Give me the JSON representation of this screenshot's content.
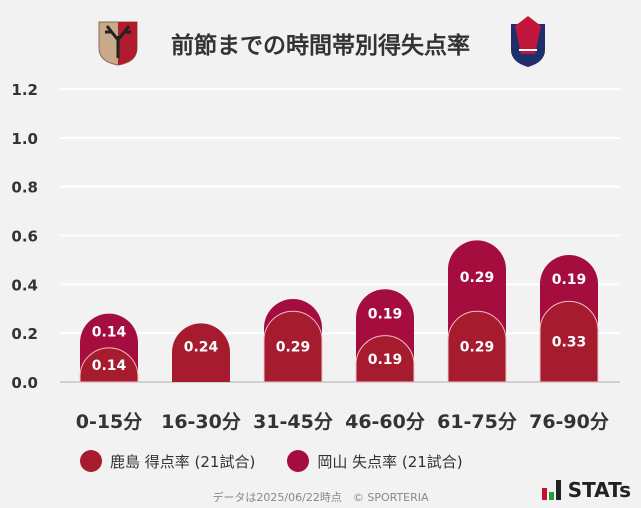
{
  "title": "前節までの時間帯別得失点率",
  "chart_data": {
    "type": "bar",
    "stacked": true,
    "categories": [
      "0-15分",
      "16-30分",
      "31-45分",
      "46-60分",
      "61-75分",
      "76-90分"
    ],
    "series": [
      {
        "name": "鹿島 得点率 (21試合)",
        "values": [
          0.14,
          0.24,
          0.29,
          0.19,
          0.29,
          0.33
        ],
        "color": "#a61c2e",
        "labels": [
          "0.14",
          "0.24",
          "0.29",
          "0.19",
          "0.29",
          "0.33"
        ]
      },
      {
        "name": "岡山 失点率 (21試合)",
        "values": [
          0.14,
          0,
          0.05,
          0.19,
          0.29,
          0.19
        ],
        "color": "#a60d3f",
        "labels": [
          "0.14",
          "",
          "",
          "0.19",
          "0.29",
          "0.19"
        ]
      }
    ],
    "ylim": [
      0,
      1.2
    ],
    "yticks": [
      "0.0",
      "0.2",
      "0.4",
      "0.6",
      "0.8",
      "1.0",
      "1.2"
    ],
    "grid": true,
    "legend": "bottom"
  },
  "footer": "データは2025/06/22時点　© SPORTERIA",
  "brand": "STATs"
}
